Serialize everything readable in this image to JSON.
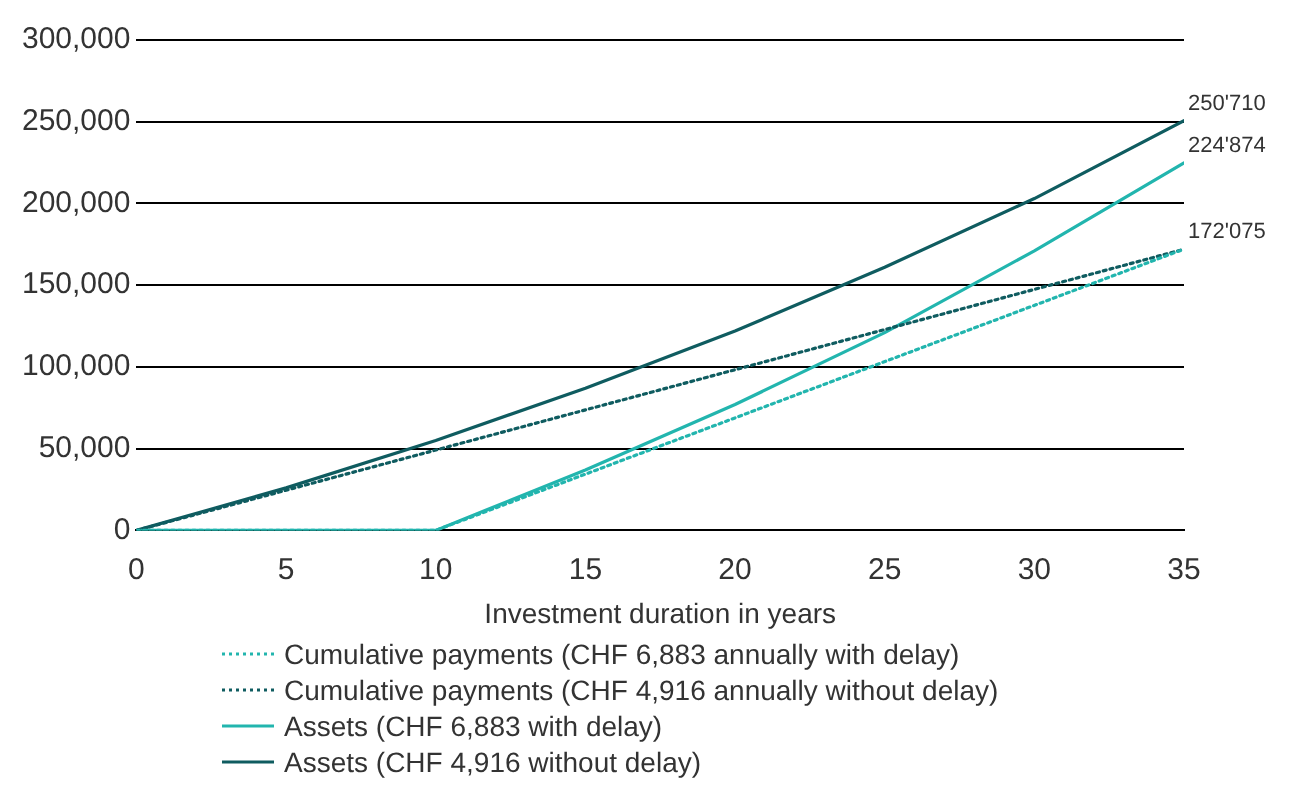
{
  "chart_data": {
    "type": "line",
    "xlabel": "Investment duration in years",
    "xlim": [
      0,
      35
    ],
    "xticks": [
      0,
      5,
      10,
      15,
      20,
      25,
      30,
      35
    ],
    "ylim": [
      0,
      300000
    ],
    "yticks": [
      {
        "value": 0,
        "label": "0"
      },
      {
        "value": 50000,
        "label": "50,000"
      },
      {
        "value": 100000,
        "label": "100,000"
      },
      {
        "value": 150000,
        "label": "150,000"
      },
      {
        "value": 200000,
        "label": "200,000"
      },
      {
        "value": 250000,
        "label": "250,000"
      },
      {
        "value": 300000,
        "label": "300,000"
      }
    ],
    "grid": "y",
    "legend": "bottom",
    "marker": "none",
    "series": [
      {
        "name": "Cumulative payments (CHF 6,883 annually with delay)",
        "color": "#22b5ae",
        "line_style": "dotted",
        "x": [
          0,
          10,
          35
        ],
        "values": [
          0,
          0,
          172075
        ],
        "value_labels": [
          null,
          null,
          "172'075"
        ]
      },
      {
        "name": "Cumulative payments (CHF 4,916 annually without delay)",
        "color": "#0f5c60",
        "line_style": "dotted",
        "x": [
          0,
          35
        ],
        "values": [
          0,
          172000
        ]
      },
      {
        "name": "Assets (CHF 6,883 with delay)",
        "color": "#22b5ae",
        "line_style": "solid",
        "x": [
          0,
          10,
          15,
          20,
          25,
          30,
          35
        ],
        "values": [
          0,
          0,
          37000,
          77000,
          121000,
          171000,
          224874
        ],
        "value_labels": [
          null,
          null,
          null,
          null,
          null,
          null,
          "224'874"
        ]
      },
      {
        "name": "Assets (CHF 4,916 without delay)",
        "color": "#0f5c60",
        "line_style": "solid",
        "x": [
          0,
          5,
          10,
          15,
          20,
          25,
          30,
          35
        ],
        "values": [
          0,
          26000,
          55000,
          87000,
          122000,
          161000,
          203000,
          250710
        ],
        "value_labels": [
          null,
          null,
          null,
          null,
          null,
          null,
          null,
          "250'710"
        ]
      }
    ]
  }
}
